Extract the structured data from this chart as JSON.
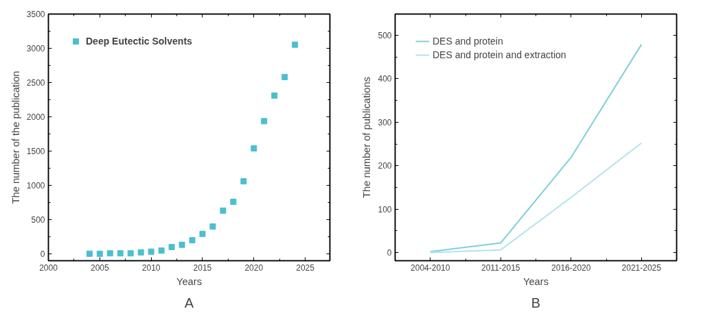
{
  "chart_data": [
    {
      "type": "scatter",
      "xlabel": "Years",
      "ylabel": "The number of the publication",
      "annotations": [
        "A"
      ],
      "marker": "square",
      "legend": "top left",
      "grid": false,
      "x": [
        2004,
        2005,
        2006,
        2007,
        2008,
        2009,
        2010,
        2011,
        2012,
        2013,
        2014,
        2015,
        2016,
        2017,
        2018,
        2019,
        2020,
        2021,
        2022,
        2023,
        2024
      ],
      "series": [
        {
          "name": "Deep Eutectic Solvents",
          "color": "#4bbfcf",
          "values": [
            2,
            2,
            8,
            8,
            8,
            22,
            33,
            48,
            100,
            133,
            199,
            292,
            399,
            631,
            760,
            1059,
            1539,
            1937,
            2310,
            2580,
            3053
          ]
        }
      ],
      "xlim": [
        2000,
        2027.4
      ],
      "xticks": [
        2000,
        2005,
        2010,
        2015,
        2020,
        2025
      ],
      "ylim": [
        -100,
        3500
      ],
      "yticks": [
        0,
        500,
        1000,
        1500,
        2000,
        2500,
        3000,
        3500
      ]
    },
    {
      "type": "line",
      "xlabel": "Years",
      "ylabel": "The number of publications",
      "annotations": [
        "B"
      ],
      "legend": "top left",
      "grid": false,
      "categories": [
        "2004-2010",
        "2011-2015",
        "2016-2020",
        "2021-2025"
      ],
      "series": [
        {
          "name": "DES and protein",
          "color": "#7fcfd9",
          "values": [
            2,
            22,
            219,
            479
          ]
        },
        {
          "name": "DES and protein and extraction",
          "color": "#b3e3ea",
          "values": [
            0,
            6,
            127,
            252
          ]
        }
      ],
      "ylim": [
        -19,
        549
      ],
      "yticks": [
        0,
        100,
        200,
        300,
        400,
        500
      ]
    }
  ]
}
